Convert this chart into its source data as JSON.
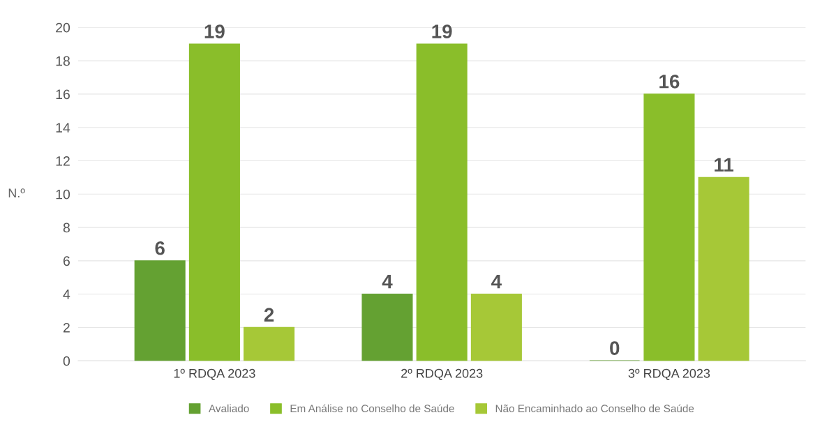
{
  "chart_data": {
    "type": "bar",
    "ylabel": "N.º",
    "categories": [
      "1º RDQA 2023",
      "2º RDQA 2023",
      "3º RDQA 2023"
    ],
    "series": [
      {
        "name": "Avaliado",
        "color": "#64a132",
        "values": [
          6,
          4,
          0
        ]
      },
      {
        "name": "Em Análise no Conselho de Saúde",
        "color": "#8abe2a",
        "values": [
          19,
          19,
          16
        ]
      },
      {
        "name": "Não Encaminhado ao Conselho de Saúde",
        "color": "#a6c837",
        "values": [
          2,
          4,
          11
        ]
      }
    ],
    "ylim": [
      0,
      20
    ],
    "yticks": [
      0,
      2,
      4,
      6,
      8,
      10,
      12,
      14,
      16,
      18,
      20
    ],
    "grid": "y",
    "legend": "bottom",
    "data_labels": true
  }
}
